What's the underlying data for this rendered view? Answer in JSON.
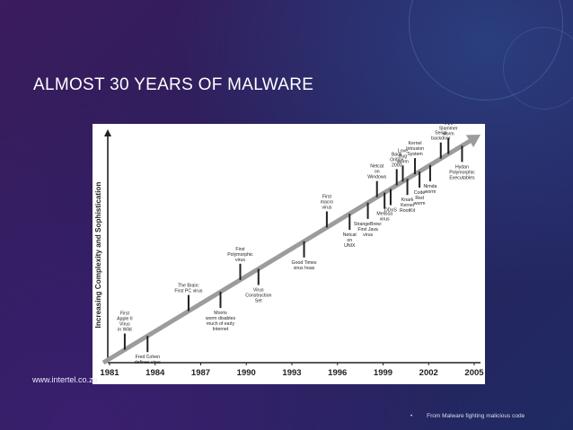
{
  "slide": {
    "title": "ALMOST 30 YEARS OF MALWARE",
    "url": "www.intertel.co.za",
    "footnote_bullet": "•",
    "footnote": "From Malware fighting malicious code"
  },
  "colors": {
    "background": "#2b1f5c",
    "title": "#ffffff",
    "arrow": "#9c9c9c",
    "figure_bg": "#ffffff",
    "ink": "#222222"
  },
  "chart_data": {
    "type": "timeline",
    "ylabel": "Increasing Complexity and Sophistication",
    "x_ticks": [
      "1981",
      "1984",
      "1987",
      "1990",
      "1993",
      "1996",
      "1999",
      "2002",
      "2005"
    ],
    "xlim": [
      1980,
      2006
    ],
    "events": [
      {
        "year": 1982.0,
        "side": "above",
        "lines": [
          "First",
          "Apple II",
          "Virus",
          "in Wild"
        ]
      },
      {
        "year": 1983.5,
        "side": "below",
        "lines": [
          "Fred Cohen",
          "defines virus"
        ]
      },
      {
        "year": 1986.2,
        "side": "above",
        "lines": [
          "The Brain:",
          "First PC virus"
        ]
      },
      {
        "year": 1988.3,
        "side": "below",
        "lines": [
          "Morris",
          "worm disables",
          "much of early",
          "Internet"
        ]
      },
      {
        "year": 1989.6,
        "side": "above",
        "lines": [
          "First",
          "Polymorphic",
          "virus"
        ]
      },
      {
        "year": 1990.8,
        "side": "below",
        "lines": [
          "Virus",
          "Construction",
          "Set"
        ]
      },
      {
        "year": 1993.8,
        "side": "below",
        "lines": [
          "Good Times",
          "virus hoax"
        ]
      },
      {
        "year": 1995.3,
        "side": "above",
        "lines": [
          "First",
          "macro",
          "virus"
        ]
      },
      {
        "year": 1996.8,
        "side": "below",
        "lines": [
          "Netcat",
          "on",
          "UNIX"
        ]
      },
      {
        "year": 1998.0,
        "side": "below",
        "lines": [
          "StrangeBrew:",
          "First Java",
          "virus"
        ]
      },
      {
        "year": 1998.6,
        "side": "above",
        "lines": [
          "Netcat",
          "on",
          "Windows"
        ]
      },
      {
        "year": 1999.1,
        "side": "below",
        "lines": [
          "Melissa",
          "virus"
        ]
      },
      {
        "year": 1999.5,
        "side": "below",
        "lines": [
          "DDoS"
        ]
      },
      {
        "year": 1999.9,
        "side": "above",
        "lines": [
          "Back",
          "Orifice",
          "2000"
        ]
      },
      {
        "year": 2000.3,
        "side": "above",
        "lines": [
          "Love",
          "Bug",
          "worm"
        ]
      },
      {
        "year": 2000.6,
        "side": "below",
        "lines": [
          "Knark",
          "Kernel",
          "RootKit"
        ]
      },
      {
        "year": 2001.1,
        "side": "above",
        "lines": [
          "Kernel",
          "Intrusion",
          "System"
        ]
      },
      {
        "year": 2001.4,
        "side": "below",
        "lines": [
          "Code",
          "Red",
          "worm"
        ]
      },
      {
        "year": 2002.1,
        "side": "below",
        "lines": [
          "Nimda",
          "worm"
        ]
      },
      {
        "year": 2002.8,
        "side": "above",
        "lines": [
          "Serial",
          "backdoor"
        ]
      },
      {
        "year": 2003.3,
        "side": "above",
        "lines": [
          "SQL",
          "Slammer",
          "worm"
        ]
      },
      {
        "year": 2004.2,
        "side": "below",
        "lines": [
          "Hydan",
          "Polymorphic",
          "Executables"
        ]
      }
    ]
  }
}
